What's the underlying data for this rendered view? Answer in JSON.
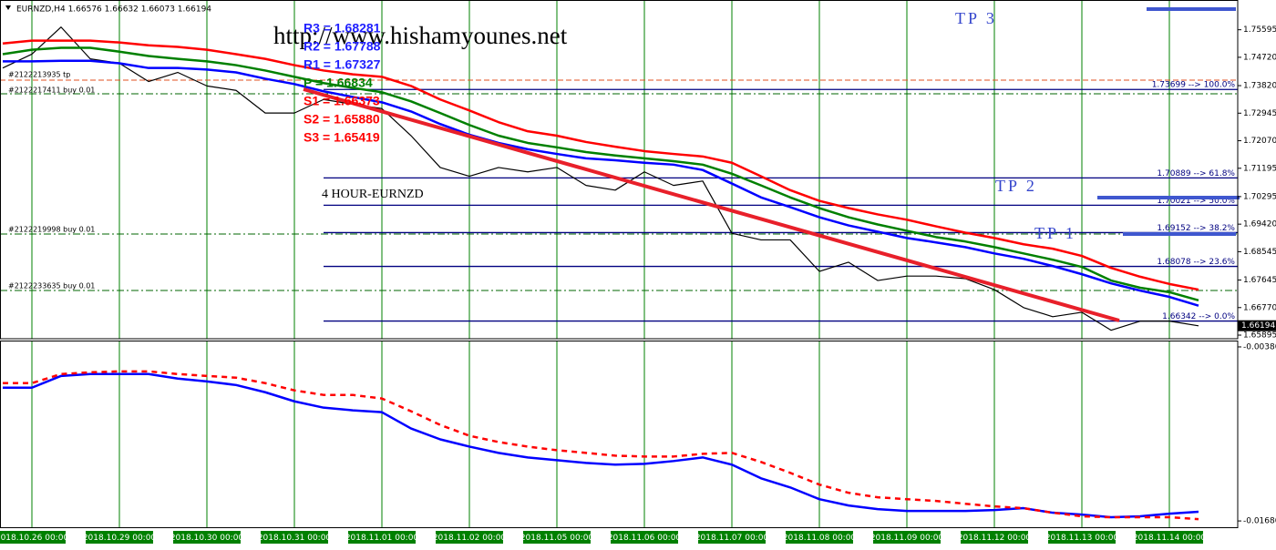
{
  "chart_data": [
    {
      "type": "line",
      "header": "EURNZD,H4  1.66576 1.66632 1.66073 1.66194",
      "watermark": "http://www.hishamyounes.net",
      "caption": "4 HOUR-EURNZD",
      "categories": [
        null,
        "2018.10.26 00:00",
        null,
        null,
        "2018.10.29 00:00",
        null,
        null,
        "2018.10.30 00:00",
        null,
        null,
        "2018.10.31 00:00",
        null,
        null,
        "2018.11.01 00:00",
        null,
        null,
        "2018.11.02 00:00",
        null,
        null,
        "2018.11.05 00:00",
        null,
        null,
        "2018.11.06 00:00",
        null,
        null,
        "2018.11.07 00:00",
        null,
        null,
        "2018.11.08 00:00",
        null,
        null,
        "2018.11.09 00:00",
        null,
        null,
        "2018.11.12 00:00",
        null,
        null,
        "2018.11.13 00:00",
        null,
        null,
        "2018.11.14 00:00",
        null
      ],
      "series": [
        {
          "color": "#000000",
          "width": 1.2,
          "values": [
            1.7438,
            1.7482,
            1.7568,
            1.7467,
            1.7453,
            1.7395,
            1.7424,
            1.7381,
            1.7367,
            1.7295,
            1.7295,
            1.7338,
            1.7323,
            1.7309,
            1.7223,
            1.7122,
            1.7094,
            1.7122,
            1.7108,
            1.7122,
            1.7065,
            1.705,
            1.7108,
            1.7065,
            1.7079,
            1.6913,
            1.6892,
            1.6892,
            1.6792,
            1.6821,
            1.6763,
            1.6777,
            1.6777,
            1.6769,
            1.6734,
            1.6677,
            1.6648,
            1.6662,
            1.6605,
            1.6634,
            1.6634,
            1.6619
          ]
        },
        {
          "color": "#ff0000",
          "width": 2.5,
          "values": [
            1.7516,
            1.7525,
            1.7525,
            1.7525,
            1.7519,
            1.751,
            1.7505,
            1.7496,
            1.7482,
            1.7467,
            1.7447,
            1.743,
            1.7418,
            1.741,
            1.7381,
            1.7338,
            1.7303,
            1.7266,
            1.7237,
            1.7223,
            1.7203,
            1.7188,
            1.7174,
            1.7165,
            1.7157,
            1.7137,
            1.7094,
            1.705,
            1.7016,
            1.6993,
            1.6973,
            1.6956,
            1.6935,
            1.6915,
            1.6898,
            1.6878,
            1.6864,
            1.6841,
            1.6803,
            1.6775,
            1.6752,
            1.6734
          ]
        },
        {
          "color": "#008000",
          "width": 2.5,
          "values": [
            1.7482,
            1.7496,
            1.7502,
            1.7502,
            1.749,
            1.7476,
            1.7467,
            1.7459,
            1.7447,
            1.743,
            1.741,
            1.739,
            1.7375,
            1.7361,
            1.7332,
            1.7295,
            1.7257,
            1.7223,
            1.72,
            1.7186,
            1.7171,
            1.716,
            1.7151,
            1.7142,
            1.7131,
            1.7102,
            1.7065,
            1.7027,
            1.6993,
            1.6964,
            1.6941,
            1.6921,
            1.6901,
            1.6887,
            1.6869,
            1.6849,
            1.6829,
            1.6806,
            1.6763,
            1.674,
            1.6726,
            1.67
          ]
        },
        {
          "color": "#0000ff",
          "width": 2.5,
          "values": [
            1.7459,
            1.7459,
            1.7461,
            1.7461,
            1.7453,
            1.7438,
            1.7438,
            1.7433,
            1.7424,
            1.7404,
            1.7387,
            1.7364,
            1.7346,
            1.7329,
            1.73,
            1.726,
            1.7226,
            1.72,
            1.718,
            1.7165,
            1.7151,
            1.7145,
            1.7137,
            1.7131,
            1.7114,
            1.7071,
            1.7027,
            1.6996,
            1.6964,
            1.6938,
            1.6918,
            1.6898,
            1.6884,
            1.6869,
            1.6849,
            1.6832,
            1.6809,
            1.6783,
            1.6754,
            1.6731,
            1.6711,
            1.6683
          ]
        }
      ],
      "ylim": [
        1.6578,
        1.7654
      ],
      "yticks": [
        1.75595,
        {
          "value": 1.7472,
          "label": "1.74720"
        },
        {
          "value": 1.7382,
          "label": "1.73820"
        },
        1.72945,
        {
          "value": 1.7207,
          "label": "1.72070"
        },
        1.71195,
        1.70295,
        {
          "value": 1.6942,
          "label": "1.69420"
        },
        1.68545,
        1.67645,
        {
          "value": 1.6677,
          "label": "1.66770"
        },
        1.65895
      ],
      "last_price": 1.66194,
      "grid": true,
      "grid_color": "#008000",
      "fib_color": "#000080",
      "fibonacci": [
        {
          "price": 1.73699,
          "label": "1.73699 --> 100.0%"
        },
        {
          "price": 1.70889,
          "label": "1.70889 --> 61.8%"
        },
        {
          "price": 1.70021,
          "label": "1.70021 --> 50.0%"
        },
        {
          "price": 1.69152,
          "label": "1.69152 --> 38.2%"
        },
        {
          "price": 1.68078,
          "label": "1.68078 --> 23.6%"
        },
        {
          "price": 1.66342,
          "label": "1.66342 --> 0.0%"
        }
      ],
      "pivots": [
        {
          "text": "R3 = 1.68281",
          "color": "#2020ff"
        },
        {
          "text": "R2 = 1.67788",
          "color": "#2020ff"
        },
        {
          "text": "R1 = 1.67327",
          "color": "#2020ff"
        },
        {
          "text": "P = 1.66834",
          "color": "#008000"
        },
        {
          "text": "S1 = 1.66373",
          "color": "#ff0000"
        },
        {
          "text": "S2 = 1.65880",
          "color": "#ff0000"
        },
        {
          "text": "S3 = 1.65419",
          "color": "#ff0000"
        }
      ],
      "tp_labels": [
        "TP 3",
        "TP 2",
        "TP 1"
      ],
      "orders": [
        "#2122213935 tp",
        "#2122217411 buy 0.01",
        "#2122219998 buy 0.01",
        "#2122233635 buy 0.01"
      ]
    },
    {
      "type": "line",
      "series": [
        {
          "color": "#0000ff",
          "width": 2.5,
          "dashed": false,
          "values": [
            -0.00685,
            -0.00685,
            -0.00597,
            -0.00583,
            -0.00583,
            -0.00583,
            -0.00617,
            -0.00638,
            -0.00665,
            -0.00719,
            -0.00787,
            -0.00834,
            -0.00854,
            -0.00868,
            -0.0099,
            -0.01071,
            -0.01125,
            -0.01172,
            -0.01206,
            -0.01227,
            -0.01247,
            -0.0126,
            -0.01254,
            -0.01233,
            -0.01206,
            -0.0126,
            -0.01362,
            -0.0143,
            -0.01518,
            -0.01565,
            -0.01592,
            -0.01606,
            -0.01606,
            -0.01606,
            -0.01599,
            -0.01585,
            -0.01619,
            -0.01633,
            -0.01653,
            -0.01646,
            -0.01626,
            -0.01612
          ]
        },
        {
          "color": "#ff0000",
          "width": 2.5,
          "dashed": true,
          "values": [
            -0.00651,
            -0.00651,
            -0.00583,
            -0.0057,
            -0.00563,
            -0.00563,
            -0.00583,
            -0.00597,
            -0.0061,
            -0.00651,
            -0.00705,
            -0.00739,
            -0.00739,
            -0.00766,
            -0.00861,
            -0.00963,
            -0.01044,
            -0.01091,
            -0.01125,
            -0.01152,
            -0.01172,
            -0.01193,
            -0.01199,
            -0.01199,
            -0.01179,
            -0.01172,
            -0.0124,
            -0.01321,
            -0.01409,
            -0.0147,
            -0.01504,
            -0.01518,
            -0.01531,
            -0.01552,
            -0.01572,
            -0.01585,
            -0.01619,
            -0.01646,
            -0.01653,
            -0.01653,
            -0.01653,
            -0.01667
          ]
        }
      ],
      "ylim": [
        -0.003397,
        -0.017343
      ],
      "yticks": [
        -0.003803,
        -0.016805
      ]
    }
  ]
}
